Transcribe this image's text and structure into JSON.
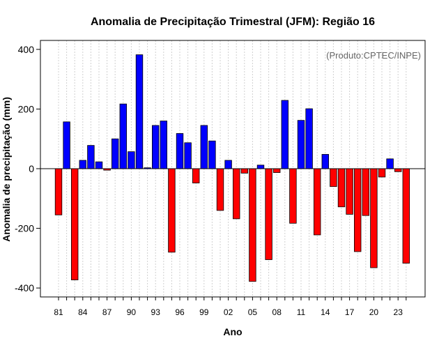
{
  "chart_data": {
    "type": "bar",
    "title": "Anomalia de Precipitação Trimestral (JFM): Região 16",
    "xlabel": "Ano",
    "ylabel": "Anomalia de precipitação (mm)",
    "credit": "(Produto:CPTEC/INPE)",
    "ylim": [
      -430,
      430
    ],
    "yticks": [
      -400,
      -200,
      0,
      200,
      400
    ],
    "xtick_labels": [
      "81",
      "84",
      "87",
      "90",
      "93",
      "96",
      "99",
      "02",
      "05",
      "08",
      "11",
      "14",
      "17",
      "20",
      "23"
    ],
    "xtick_indices": [
      0,
      3,
      6,
      9,
      12,
      15,
      18,
      21,
      24,
      27,
      30,
      33,
      36,
      39,
      42
    ],
    "grid": true,
    "positive_color": "#0000ff",
    "negative_color": "#ff0000",
    "categories": [
      "1981",
      "1982",
      "1983",
      "1984",
      "1985",
      "1986",
      "1987",
      "1988",
      "1989",
      "1990",
      "1991",
      "1992",
      "1993",
      "1994",
      "1995",
      "1996",
      "1997",
      "1998",
      "1999",
      "2000",
      "2001",
      "2002",
      "2003",
      "2004",
      "2005",
      "2006",
      "2007",
      "2008",
      "2009",
      "2010",
      "2011",
      "2012",
      "2013",
      "2014",
      "2015",
      "2016",
      "2017",
      "2018",
      "2019",
      "2020",
      "2021",
      "2022",
      "2023",
      "2024"
    ],
    "values": [
      -155,
      157,
      -373,
      28,
      78,
      23,
      -5,
      100,
      217,
      57,
      382,
      3,
      145,
      160,
      -280,
      118,
      87,
      -48,
      145,
      93,
      -140,
      28,
      -168,
      -15,
      -378,
      12,
      -305,
      -13,
      229,
      -183,
      162,
      201,
      -222,
      48,
      -60,
      -128,
      -153,
      -278,
      -157,
      -332,
      -28,
      33,
      -10,
      -317
    ]
  }
}
